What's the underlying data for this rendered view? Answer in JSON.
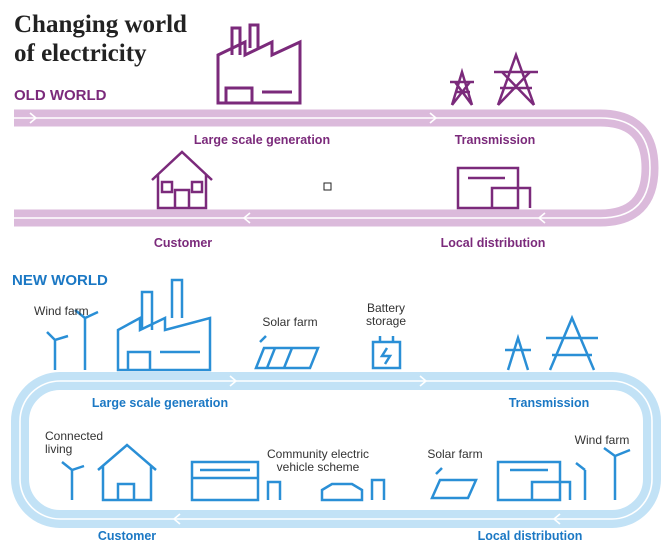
{
  "title_lines": [
    "Changing world",
    "of electricity"
  ],
  "old_world": {
    "label": "OLD WORLD",
    "nodes": [
      "Large scale generation",
      "Transmission",
      "Local distribution",
      "Customer"
    ]
  },
  "new_world": {
    "label": "NEW WORLD",
    "loop_nodes": [
      "Large scale generation",
      "Transmission",
      "Customer",
      "Local distribution"
    ],
    "items": [
      {
        "lines": [
          "Wind farm"
        ]
      },
      {
        "lines": [
          "Solar farm"
        ]
      },
      {
        "lines": [
          "Battery",
          "storage"
        ]
      },
      {
        "lines": [
          "Connected",
          "living"
        ]
      },
      {
        "lines": [
          "Community electric",
          "vehicle scheme"
        ]
      },
      {
        "lines": [
          "Solar farm"
        ]
      },
      {
        "lines": [
          "Wind farm"
        ]
      }
    ]
  }
}
